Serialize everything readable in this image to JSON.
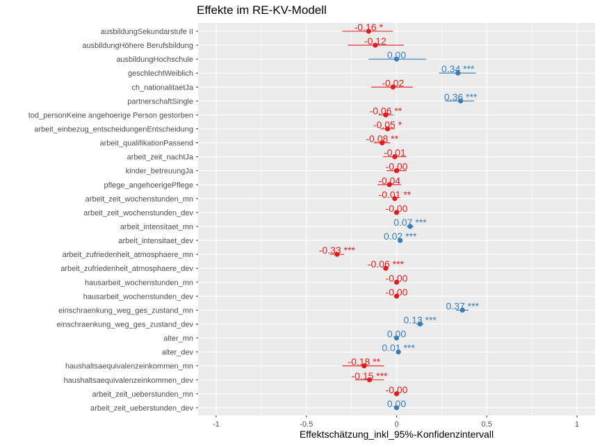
{
  "chart_data": {
    "type": "forest",
    "title": "Effekte im RE-KV-Modell",
    "xlabel": "Effektschätzung_inkl_95%-Konfidenzintervall",
    "ylabel": "",
    "xlim": [
      -1.1,
      1.1
    ],
    "xticks": [
      -1,
      -0.5,
      0,
      0.5,
      1
    ],
    "xtick_labels": [
      "-1",
      "-0.5",
      "0",
      "0.5",
      "1"
    ],
    "grid": true,
    "colors": {
      "negative": "#e41a1c",
      "positive": "#377eb8",
      "panel": "#ebebeb",
      "grid": "#ffffff"
    },
    "rows": [
      {
        "term": "ausbildungSekundarstufe II",
        "estimate": -0.155,
        "ci_low": -0.3,
        "ci_high": -0.02,
        "label": "-0.16 *"
      },
      {
        "term": "ausbildungHöhere Berufsbildung",
        "estimate": -0.118,
        "ci_low": -0.27,
        "ci_high": 0.04,
        "label": "-0.12"
      },
      {
        "term": "ausbildungHochschule",
        "estimate": 0.0,
        "ci_low": -0.155,
        "ci_high": 0.165,
        "label": "0.00"
      },
      {
        "term": "geschlechtWeiblich",
        "estimate": 0.34,
        "ci_low": 0.235,
        "ci_high": 0.44,
        "label": "0.34 ***"
      },
      {
        "term": "ch_nationalitaetJa",
        "estimate": -0.02,
        "ci_low": -0.14,
        "ci_high": 0.09,
        "label": "-0.02"
      },
      {
        "term": "partnerschaftSingle",
        "estimate": 0.355,
        "ci_low": 0.27,
        "ci_high": 0.43,
        "label": "0.36 ***"
      },
      {
        "term": "tod_personKeine angehoerige Person gestorben",
        "estimate": -0.06,
        "ci_low": -0.1,
        "ci_high": -0.02,
        "label": "-0.06 **"
      },
      {
        "term": "arbeit_einbezug_entscheidungenEntscheidung",
        "estimate": -0.05,
        "ci_low": -0.09,
        "ci_high": -0.01,
        "label": "-0.05 *"
      },
      {
        "term": "arbeit_qualifikationPassend",
        "estimate": -0.08,
        "ci_low": -0.125,
        "ci_high": -0.035,
        "label": "-0.08 **"
      },
      {
        "term": "arbeit_zeit_nachtJa",
        "estimate": -0.01,
        "ci_low": -0.075,
        "ci_high": 0.055,
        "label": "-0.01"
      },
      {
        "term": "kinder_betreuungJa",
        "estimate": 0.0,
        "ci_low": -0.055,
        "ci_high": 0.055,
        "label": "-0.00"
      },
      {
        "term": "pflege_angehoerigePflege",
        "estimate": -0.04,
        "ci_low": -0.105,
        "ci_high": 0.025,
        "label": "-0.04"
      },
      {
        "term": "arbeit_zeit_wochenstunden_mn",
        "estimate": -0.01,
        "ci_low": -0.02,
        "ci_high": 0.0,
        "label": "-0.01 **"
      },
      {
        "term": "arbeit_zeit_wochenstunden_dev",
        "estimate": 0.0,
        "ci_low": -0.005,
        "ci_high": 0.005,
        "label": "-0.00"
      },
      {
        "term": "arbeit_intensitaet_mn",
        "estimate": 0.075,
        "ci_low": 0.055,
        "ci_high": 0.095,
        "label": "0.07 ***"
      },
      {
        "term": "arbeit_intensitaet_dev",
        "estimate": 0.02,
        "ci_low": 0.012,
        "ci_high": 0.028,
        "label": "0.02 ***"
      },
      {
        "term": "arbeit_zufriedenheit_atmosphaere_mn",
        "estimate": -0.33,
        "ci_low": -0.37,
        "ci_high": -0.29,
        "label": "-0.33 ***"
      },
      {
        "term": "arbeit_zufriedenheit_atmosphaere_dev",
        "estimate": -0.06,
        "ci_low": -0.075,
        "ci_high": -0.045,
        "label": "-0.06 ***"
      },
      {
        "term": "hausarbeit_wochenstunden_mn",
        "estimate": 0.0,
        "ci_low": -0.005,
        "ci_high": 0.005,
        "label": "-0.00"
      },
      {
        "term": "hausarbeit_wochenstunden_dev",
        "estimate": 0.0,
        "ci_low": -0.003,
        "ci_high": 0.003,
        "label": "-0.00"
      },
      {
        "term": "einschraenkung_weg_ges_zustand_mn",
        "estimate": 0.365,
        "ci_low": 0.33,
        "ci_high": 0.4,
        "label": "0.37 ***"
      },
      {
        "term": "einschraenkung_weg_ges_zustand_dev",
        "estimate": 0.13,
        "ci_low": 0.11,
        "ci_high": 0.15,
        "label": "0.13 ***"
      },
      {
        "term": "alter_mn",
        "estimate": 0.0,
        "ci_low": -0.005,
        "ci_high": 0.005,
        "label": "0.00"
      },
      {
        "term": "alter_dev",
        "estimate": 0.01,
        "ci_low": 0.005,
        "ci_high": 0.015,
        "label": "0.01 ***"
      },
      {
        "term": "haushaltsaequivalenzeinkommen_mn",
        "estimate": -0.18,
        "ci_low": -0.3,
        "ci_high": -0.07,
        "label": "-0.18 **"
      },
      {
        "term": "haushaltsaequivalenzeinkommen_dev",
        "estimate": -0.15,
        "ci_low": -0.23,
        "ci_high": -0.07,
        "label": "-0.15 ***"
      },
      {
        "term": "arbeit_zeit_ueberstunden_mn",
        "estimate": 0.0,
        "ci_low": -0.005,
        "ci_high": 0.005,
        "label": "-0.00"
      },
      {
        "term": "arbeit_zeit_ueberstunden_dev",
        "estimate": 0.0,
        "ci_low": -0.003,
        "ci_high": 0.003,
        "label": "0.00"
      }
    ]
  }
}
